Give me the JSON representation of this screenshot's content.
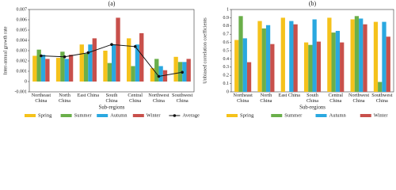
{
  "chart_data": [
    {
      "type": "bar",
      "title": "(a)",
      "x_label": "Sub-regions",
      "y_label": "Inter-annual growth rate",
      "categories": [
        "Northeast China",
        "North China",
        "East China",
        "South China",
        "Central China",
        "Northwest China",
        "Southwest China"
      ],
      "series": [
        {
          "name": "Spring",
          "color": "#f5c21b",
          "values": [
            0.0025,
            0.0023,
            0.0036,
            0.003,
            0.0042,
            0.0013,
            0.0024
          ]
        },
        {
          "name": "Summer",
          "color": "#6aaf4a",
          "values": [
            0.0031,
            0.0029,
            0.0027,
            0.0018,
            0.0015,
            0.0022,
            0.0019
          ]
        },
        {
          "name": "Autumn",
          "color": "#2aa8e0",
          "values": [
            0.0026,
            0.0022,
            0.0036,
            0.0036,
            0.0036,
            0.0015,
            0.0019
          ]
        },
        {
          "name": "Winter",
          "color": "#c8504b",
          "values": [
            0.0022,
            0.0026,
            0.0042,
            0.0062,
            0.0047,
            0.0011,
            0.0022
          ]
        },
        {
          "name": "Average",
          "color": "#111111",
          "type": "line",
          "values": [
            0.0025,
            0.0024,
            0.0028,
            0.0036,
            0.0034,
            0.0005,
            0.0009
          ]
        }
      ],
      "ylim": [
        -0.001,
        0.007
      ],
      "yticks": [
        -0.001,
        0,
        0.001,
        0.002,
        0.003,
        0.004,
        0.005,
        0.006,
        0.007
      ]
    },
    {
      "type": "bar",
      "title": "(b)",
      "x_label": "Sub-regions",
      "y_label": "Unbiased correlation coefficients",
      "categories": [
        "Northeast China",
        "North China",
        "East China",
        "South China",
        "Central China",
        "Northwest China",
        "Southwest China"
      ],
      "series": [
        {
          "name": "Spring",
          "color": "#f5c21b",
          "values": [
            0.63,
            0.86,
            0.9,
            0.6,
            0.9,
            0.88,
            0.85
          ]
        },
        {
          "name": "Summer",
          "color": "#6aaf4a",
          "values": [
            0.92,
            0.77,
            null,
            0.57,
            0.72,
            0.92,
            0.12
          ]
        },
        {
          "name": "Autumn",
          "color": "#2aa8e0",
          "values": [
            0.65,
            0.81,
            0.86,
            0.88,
            0.74,
            0.89,
            0.85
          ]
        },
        {
          "name": "Winter",
          "color": "#c8504b",
          "values": [
            0.36,
            0.58,
            0.82,
            0.61,
            0.6,
            0.82,
            0.67
          ]
        }
      ],
      "ylim": [
        0,
        1
      ],
      "yticks": [
        0,
        0.1,
        0.2,
        0.3,
        0.4,
        0.5,
        0.6,
        0.7,
        0.8,
        0.9,
        1
      ]
    }
  ]
}
